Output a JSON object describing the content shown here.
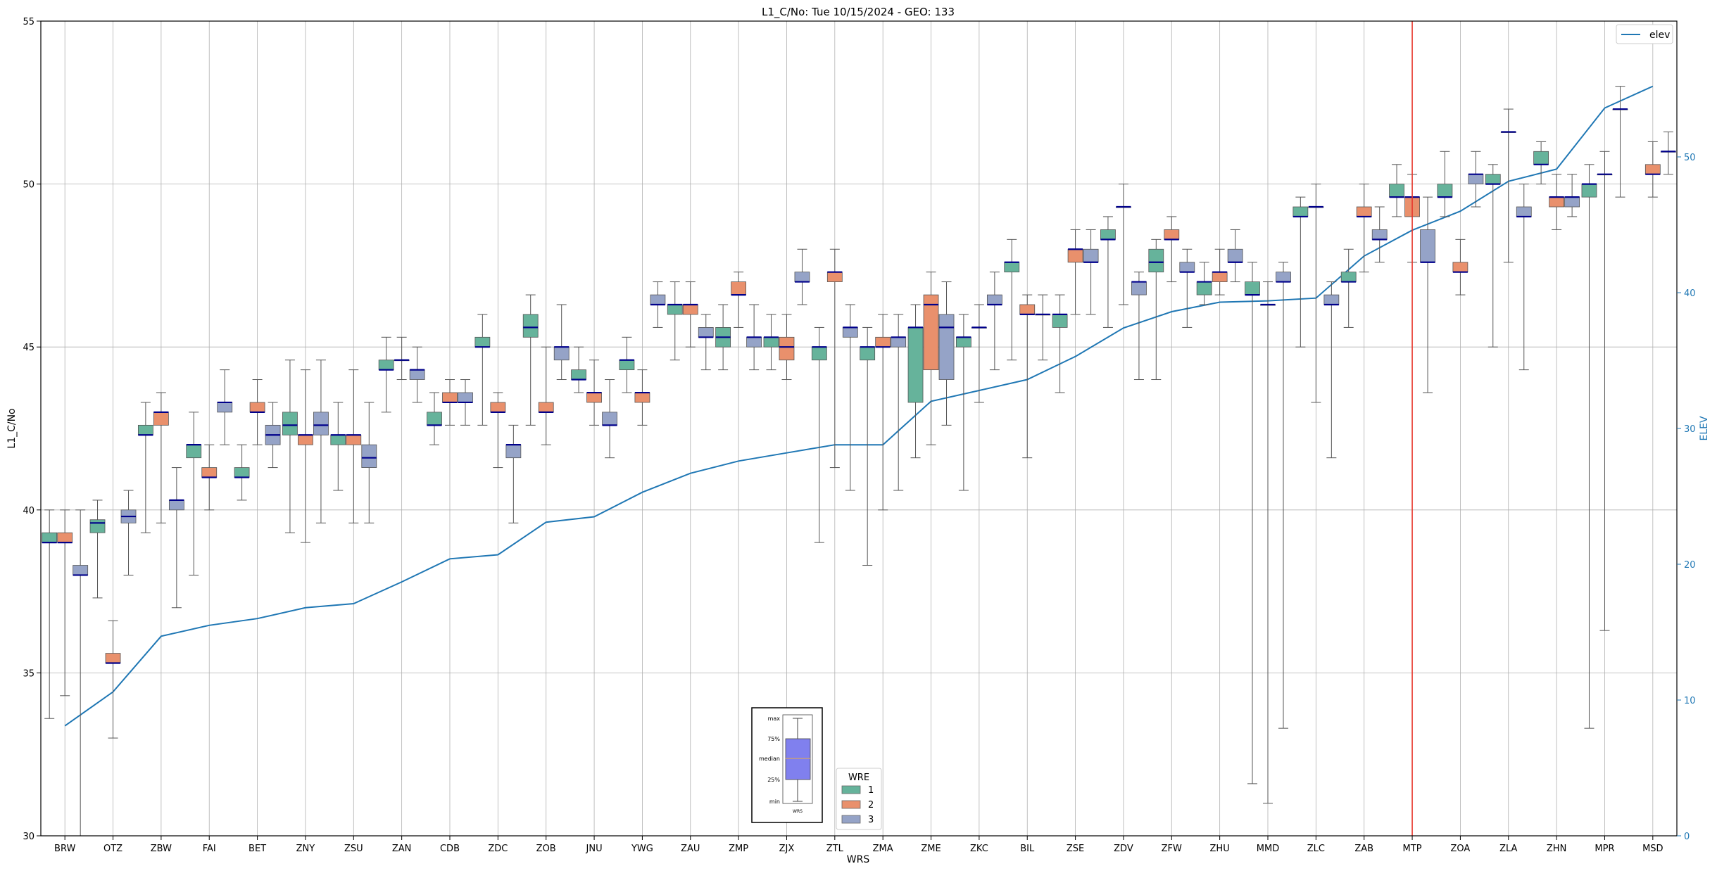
{
  "chart_data": {
    "type": "box",
    "title": "L1_C/No: Tue 10/15/2024 - GEO: 133",
    "xlabel": "WRS",
    "ylabel": "L1_C/No",
    "y2label": "ELEV",
    "ylim": [
      30,
      55
    ],
    "y2lim": [
      0,
      60
    ],
    "yticks": [
      "30",
      "35",
      "40",
      "45",
      "50",
      "55"
    ],
    "y2ticks": [
      "0",
      "10",
      "20",
      "30",
      "40",
      "50"
    ],
    "grid": true,
    "categories": [
      "BRW",
      "OTZ",
      "ZBW",
      "FAI",
      "BET",
      "ZNY",
      "ZSU",
      "ZAN",
      "CDB",
      "ZDC",
      "ZOB",
      "JNU",
      "YWG",
      "ZAU",
      "ZMP",
      "ZJX",
      "ZTL",
      "ZMA",
      "ZME",
      "ZKC",
      "BIL",
      "ZSE",
      "ZDV",
      "ZFW",
      "ZHU",
      "MMD",
      "ZLC",
      "ZAB",
      "MTP",
      "ZOA",
      "ZLA",
      "ZHN",
      "MPR",
      "MSD"
    ],
    "wre_colors": {
      "1": "#66b39b",
      "2": "#e9906c",
      "3": "#95a3c7"
    },
    "median_color": "#00008b",
    "highlight_color": "#e8362b",
    "highlight_category": "MTP",
    "legend": {
      "title": "WRE",
      "entries": [
        "1",
        "2",
        "3"
      ],
      "placement": "lower-center"
    },
    "legend2": {
      "entries": [
        "elev"
      ],
      "placement": "top-right"
    },
    "box_key": {
      "labels": [
        "max",
        "75%",
        "median",
        "25%",
        "min"
      ],
      "xlabel": "WRS"
    },
    "boxes": [
      {
        "cat": "BRW",
        "wre": 1,
        "min": 33.6,
        "q1": 39.0,
        "med": 39.0,
        "q3": 39.3,
        "max": 40.0
      },
      {
        "cat": "BRW",
        "wre": 2,
        "min": 34.3,
        "q1": 39.0,
        "med": 39.0,
        "q3": 39.3,
        "max": 40.0
      },
      {
        "cat": "BRW",
        "wre": 3,
        "min": 30.0,
        "q1": 38.0,
        "med": 38.0,
        "q3": 38.3,
        "max": 40.0
      },
      {
        "cat": "OTZ",
        "wre": 1,
        "min": 37.3,
        "q1": 39.3,
        "med": 39.6,
        "q3": 39.7,
        "max": 40.3
      },
      {
        "cat": "OTZ",
        "wre": 2,
        "min": 33.0,
        "q1": 35.3,
        "med": 35.3,
        "q3": 35.6,
        "max": 36.6
      },
      {
        "cat": "OTZ",
        "wre": 3,
        "min": 38.0,
        "q1": 39.6,
        "med": 39.8,
        "q3": 40.0,
        "max": 40.6
      },
      {
        "cat": "ZBW",
        "wre": 1,
        "min": 39.3,
        "q1": 42.3,
        "med": 42.3,
        "q3": 42.6,
        "max": 43.3
      },
      {
        "cat": "ZBW",
        "wre": 2,
        "min": 39.6,
        "q1": 42.6,
        "med": 43.0,
        "q3": 43.0,
        "max": 43.6
      },
      {
        "cat": "ZBW",
        "wre": 3,
        "min": 37.0,
        "q1": 40.0,
        "med": 40.3,
        "q3": 40.3,
        "max": 41.3
      },
      {
        "cat": "FAI",
        "wre": 1,
        "min": 38.0,
        "q1": 41.6,
        "med": 42.0,
        "q3": 42.0,
        "max": 43.0
      },
      {
        "cat": "FAI",
        "wre": 2,
        "min": 40.0,
        "q1": 41.0,
        "med": 41.0,
        "q3": 41.3,
        "max": 42.0
      },
      {
        "cat": "FAI",
        "wre": 3,
        "min": 42.0,
        "q1": 43.0,
        "med": 43.3,
        "q3": 43.3,
        "max": 44.3
      },
      {
        "cat": "BET",
        "wre": 1,
        "min": 40.3,
        "q1": 41.0,
        "med": 41.0,
        "q3": 41.3,
        "max": 42.0
      },
      {
        "cat": "BET",
        "wre": 2,
        "min": 42.0,
        "q1": 43.0,
        "med": 43.0,
        "q3": 43.3,
        "max": 44.0
      },
      {
        "cat": "BET",
        "wre": 3,
        "min": 41.3,
        "q1": 42.0,
        "med": 42.3,
        "q3": 42.6,
        "max": 43.3
      },
      {
        "cat": "ZNY",
        "wre": 1,
        "min": 39.3,
        "q1": 42.3,
        "med": 42.6,
        "q3": 43.0,
        "max": 44.6
      },
      {
        "cat": "ZNY",
        "wre": 2,
        "min": 39.0,
        "q1": 42.0,
        "med": 42.3,
        "q3": 42.3,
        "max": 44.3
      },
      {
        "cat": "ZNY",
        "wre": 3,
        "min": 39.6,
        "q1": 42.3,
        "med": 42.6,
        "q3": 43.0,
        "max": 44.6
      },
      {
        "cat": "ZSU",
        "wre": 1,
        "min": 40.6,
        "q1": 42.0,
        "med": 42.3,
        "q3": 42.3,
        "max": 43.3
      },
      {
        "cat": "ZSU",
        "wre": 2,
        "min": 39.6,
        "q1": 42.0,
        "med": 42.3,
        "q3": 42.3,
        "max": 44.3
      },
      {
        "cat": "ZSU",
        "wre": 3,
        "min": 39.6,
        "q1": 41.3,
        "med": 41.6,
        "q3": 42.0,
        "max": 43.3
      },
      {
        "cat": "ZAN",
        "wre": 1,
        "min": 43.0,
        "q1": 44.3,
        "med": 44.3,
        "q3": 44.6,
        "max": 45.3
      },
      {
        "cat": "ZAN",
        "wre": 2,
        "min": 44.0,
        "q1": 44.6,
        "med": 44.6,
        "q3": 44.6,
        "max": 45.3
      },
      {
        "cat": "ZAN",
        "wre": 3,
        "min": 43.3,
        "q1": 44.0,
        "med": 44.3,
        "q3": 44.3,
        "max": 45.0
      },
      {
        "cat": "CDB",
        "wre": 1,
        "min": 42.0,
        "q1": 42.6,
        "med": 42.6,
        "q3": 43.0,
        "max": 43.6
      },
      {
        "cat": "CDB",
        "wre": 2,
        "min": 42.6,
        "q1": 43.3,
        "med": 43.3,
        "q3": 43.6,
        "max": 44.0
      },
      {
        "cat": "CDB",
        "wre": 3,
        "min": 42.6,
        "q1": 43.3,
        "med": 43.3,
        "q3": 43.6,
        "max": 44.0
      },
      {
        "cat": "ZDC",
        "wre": 1,
        "min": 42.6,
        "q1": 45.0,
        "med": 45.0,
        "q3": 45.3,
        "max": 46.0
      },
      {
        "cat": "ZDC",
        "wre": 2,
        "min": 41.3,
        "q1": 43.0,
        "med": 43.0,
        "q3": 43.3,
        "max": 43.6
      },
      {
        "cat": "ZDC",
        "wre": 3,
        "min": 39.6,
        "q1": 41.6,
        "med": 42.0,
        "q3": 42.0,
        "max": 42.6
      },
      {
        "cat": "ZOB",
        "wre": 1,
        "min": 42.6,
        "q1": 45.3,
        "med": 45.6,
        "q3": 46.0,
        "max": 46.6
      },
      {
        "cat": "ZOB",
        "wre": 2,
        "min": 42.0,
        "q1": 43.0,
        "med": 43.0,
        "q3": 43.3,
        "max": 45.0
      },
      {
        "cat": "ZOB",
        "wre": 3,
        "min": 44.0,
        "q1": 44.6,
        "med": 45.0,
        "q3": 45.0,
        "max": 46.3
      },
      {
        "cat": "JNU",
        "wre": 1,
        "min": 43.6,
        "q1": 44.0,
        "med": 44.0,
        "q3": 44.3,
        "max": 45.0
      },
      {
        "cat": "JNU",
        "wre": 2,
        "min": 42.6,
        "q1": 43.3,
        "med": 43.6,
        "q3": 43.6,
        "max": 44.6
      },
      {
        "cat": "JNU",
        "wre": 3,
        "min": 41.6,
        "q1": 42.6,
        "med": 42.6,
        "q3": 43.0,
        "max": 44.0
      },
      {
        "cat": "YWG",
        "wre": 1,
        "min": 43.6,
        "q1": 44.3,
        "med": 44.6,
        "q3": 44.6,
        "max": 45.3
      },
      {
        "cat": "YWG",
        "wre": 2,
        "min": 42.6,
        "q1": 43.3,
        "med": 43.6,
        "q3": 43.6,
        "max": 44.3
      },
      {
        "cat": "YWG",
        "wre": 3,
        "min": 45.6,
        "q1": 46.3,
        "med": 46.3,
        "q3": 46.6,
        "max": 47.0
      },
      {
        "cat": "ZAU",
        "wre": 1,
        "min": 44.6,
        "q1": 46.0,
        "med": 46.3,
        "q3": 46.3,
        "max": 47.0
      },
      {
        "cat": "ZAU",
        "wre": 2,
        "min": 45.0,
        "q1": 46.0,
        "med": 46.3,
        "q3": 46.3,
        "max": 47.0
      },
      {
        "cat": "ZAU",
        "wre": 3,
        "min": 44.3,
        "q1": 45.3,
        "med": 45.3,
        "q3": 45.6,
        "max": 46.0
      },
      {
        "cat": "ZMP",
        "wre": 1,
        "min": 44.3,
        "q1": 45.0,
        "med": 45.3,
        "q3": 45.6,
        "max": 46.3
      },
      {
        "cat": "ZMP",
        "wre": 2,
        "min": 45.6,
        "q1": 46.6,
        "med": 46.6,
        "q3": 47.0,
        "max": 47.3
      },
      {
        "cat": "ZMP",
        "wre": 3,
        "min": 44.3,
        "q1": 45.0,
        "med": 45.3,
        "q3": 45.3,
        "max": 46.3
      },
      {
        "cat": "ZJX",
        "wre": 1,
        "min": 44.3,
        "q1": 45.0,
        "med": 45.3,
        "q3": 45.3,
        "max": 46.0
      },
      {
        "cat": "ZJX",
        "wre": 2,
        "min": 44.0,
        "q1": 44.6,
        "med": 45.0,
        "q3": 45.3,
        "max": 46.0
      },
      {
        "cat": "ZJX",
        "wre": 3,
        "min": 46.3,
        "q1": 47.0,
        "med": 47.0,
        "q3": 47.3,
        "max": 48.0
      },
      {
        "cat": "ZTL",
        "wre": 1,
        "min": 39.0,
        "q1": 44.6,
        "med": 45.0,
        "q3": 45.0,
        "max": 45.6
      },
      {
        "cat": "ZTL",
        "wre": 2,
        "min": 41.3,
        "q1": 47.0,
        "med": 47.3,
        "q3": 47.3,
        "max": 48.0
      },
      {
        "cat": "ZTL",
        "wre": 3,
        "min": 40.6,
        "q1": 45.3,
        "med": 45.6,
        "q3": 45.6,
        "max": 46.3
      },
      {
        "cat": "ZMA",
        "wre": 1,
        "min": 38.3,
        "q1": 44.6,
        "med": 45.0,
        "q3": 45.0,
        "max": 45.6
      },
      {
        "cat": "ZMA",
        "wre": 2,
        "min": 40.0,
        "q1": 45.0,
        "med": 45.0,
        "q3": 45.3,
        "max": 46.0
      },
      {
        "cat": "ZMA",
        "wre": 3,
        "min": 40.6,
        "q1": 45.0,
        "med": 45.3,
        "q3": 45.3,
        "max": 46.0
      },
      {
        "cat": "ZME",
        "wre": 1,
        "min": 41.6,
        "q1": 43.3,
        "med": 45.6,
        "q3": 45.6,
        "max": 46.3
      },
      {
        "cat": "ZME",
        "wre": 2,
        "min": 42.0,
        "q1": 44.3,
        "med": 46.3,
        "q3": 46.6,
        "max": 47.3
      },
      {
        "cat": "ZME",
        "wre": 3,
        "min": 42.6,
        "q1": 44.0,
        "med": 45.6,
        "q3": 46.0,
        "max": 47.0
      },
      {
        "cat": "ZKC",
        "wre": 1,
        "min": 40.6,
        "q1": 45.0,
        "med": 45.3,
        "q3": 45.3,
        "max": 46.0
      },
      {
        "cat": "ZKC",
        "wre": 2,
        "min": 43.3,
        "q1": 45.6,
        "med": 45.6,
        "q3": 45.6,
        "max": 46.3
      },
      {
        "cat": "ZKC",
        "wre": 3,
        "min": 44.3,
        "q1": 46.3,
        "med": 46.3,
        "q3": 46.6,
        "max": 47.3
      },
      {
        "cat": "BIL",
        "wre": 1,
        "min": 44.6,
        "q1": 47.3,
        "med": 47.6,
        "q3": 47.6,
        "max": 48.3
      },
      {
        "cat": "BIL",
        "wre": 2,
        "min": 41.6,
        "q1": 46.0,
        "med": 46.0,
        "q3": 46.3,
        "max": 46.6
      },
      {
        "cat": "BIL",
        "wre": 3,
        "min": 44.6,
        "q1": 46.0,
        "med": 46.0,
        "q3": 46.0,
        "max": 46.6
      },
      {
        "cat": "ZSE",
        "wre": 1,
        "min": 43.6,
        "q1": 45.6,
        "med": 46.0,
        "q3": 46.0,
        "max": 46.6
      },
      {
        "cat": "ZSE",
        "wre": 2,
        "min": 46.0,
        "q1": 47.6,
        "med": 48.0,
        "q3": 48.0,
        "max": 48.6
      },
      {
        "cat": "ZSE",
        "wre": 3,
        "min": 46.0,
        "q1": 47.6,
        "med": 47.6,
        "q3": 48.0,
        "max": 48.6
      },
      {
        "cat": "ZDV",
        "wre": 1,
        "min": 45.6,
        "q1": 48.3,
        "med": 48.3,
        "q3": 48.6,
        "max": 49.0
      },
      {
        "cat": "ZDV",
        "wre": 2,
        "min": 46.3,
        "q1": 49.3,
        "med": 49.3,
        "q3": 49.3,
        "max": 50.0
      },
      {
        "cat": "ZDV",
        "wre": 3,
        "min": 44.0,
        "q1": 46.6,
        "med": 47.0,
        "q3": 47.0,
        "max": 47.3
      },
      {
        "cat": "ZFW",
        "wre": 1,
        "min": 44.0,
        "q1": 47.3,
        "med": 47.6,
        "q3": 48.0,
        "max": 48.3
      },
      {
        "cat": "ZFW",
        "wre": 2,
        "min": 47.0,
        "q1": 48.3,
        "med": 48.3,
        "q3": 48.6,
        "max": 49.0
      },
      {
        "cat": "ZFW",
        "wre": 3,
        "min": 45.6,
        "q1": 47.3,
        "med": 47.3,
        "q3": 47.6,
        "max": 48.0
      },
      {
        "cat": "ZHU",
        "wre": 1,
        "min": 46.3,
        "q1": 46.6,
        "med": 47.0,
        "q3": 47.0,
        "max": 47.6
      },
      {
        "cat": "ZHU",
        "wre": 2,
        "min": 46.6,
        "q1": 47.0,
        "med": 47.3,
        "q3": 47.3,
        "max": 48.0
      },
      {
        "cat": "ZHU",
        "wre": 3,
        "min": 47.0,
        "q1": 47.6,
        "med": 47.6,
        "q3": 48.0,
        "max": 48.6
      },
      {
        "cat": "MMD",
        "wre": 1,
        "min": 31.6,
        "q1": 46.6,
        "med": 46.6,
        "q3": 47.0,
        "max": 47.6
      },
      {
        "cat": "MMD",
        "wre": 2,
        "min": 31.0,
        "q1": 46.3,
        "med": 46.3,
        "q3": 46.3,
        "max": 47.0
      },
      {
        "cat": "MMD",
        "wre": 3,
        "min": 33.3,
        "q1": 47.0,
        "med": 47.0,
        "q3": 47.3,
        "max": 47.6
      },
      {
        "cat": "ZLC",
        "wre": 1,
        "min": 45.0,
        "q1": 49.0,
        "med": 49.0,
        "q3": 49.3,
        "max": 49.6
      },
      {
        "cat": "ZLC",
        "wre": 2,
        "min": 43.3,
        "q1": 49.3,
        "med": 49.3,
        "q3": 49.3,
        "max": 50.0
      },
      {
        "cat": "ZLC",
        "wre": 3,
        "min": 41.6,
        "q1": 46.3,
        "med": 46.3,
        "q3": 46.6,
        "max": 47.0
      },
      {
        "cat": "ZAB",
        "wre": 1,
        "min": 45.6,
        "q1": 47.0,
        "med": 47.0,
        "q3": 47.3,
        "max": 48.0
      },
      {
        "cat": "ZAB",
        "wre": 2,
        "min": 47.3,
        "q1": 49.0,
        "med": 49.0,
        "q3": 49.3,
        "max": 50.0
      },
      {
        "cat": "ZAB",
        "wre": 3,
        "min": 47.6,
        "q1": 48.3,
        "med": 48.3,
        "q3": 48.6,
        "max": 49.3
      },
      {
        "cat": "MTP",
        "wre": 1,
        "min": 49.0,
        "q1": 49.6,
        "med": 49.6,
        "q3": 50.0,
        "max": 50.6
      },
      {
        "cat": "MTP",
        "wre": 2,
        "min": 47.6,
        "q1": 49.0,
        "med": 49.6,
        "q3": 49.6,
        "max": 50.3
      },
      {
        "cat": "MTP",
        "wre": 3,
        "min": 43.6,
        "q1": 47.6,
        "med": 47.6,
        "q3": 48.6,
        "max": 49.6
      },
      {
        "cat": "ZOA",
        "wre": 1,
        "min": 49.0,
        "q1": 49.6,
        "med": 49.6,
        "q3": 50.0,
        "max": 51.0
      },
      {
        "cat": "ZOA",
        "wre": 2,
        "min": 46.6,
        "q1": 47.3,
        "med": 47.3,
        "q3": 47.6,
        "max": 48.3
      },
      {
        "cat": "ZOA",
        "wre": 3,
        "min": 49.3,
        "q1": 50.0,
        "med": 50.3,
        "q3": 50.3,
        "max": 51.0
      },
      {
        "cat": "ZLA",
        "wre": 1,
        "min": 45.0,
        "q1": 50.0,
        "med": 50.0,
        "q3": 50.3,
        "max": 50.6
      },
      {
        "cat": "ZLA",
        "wre": 2,
        "min": 47.6,
        "q1": 51.6,
        "med": 51.6,
        "q3": 51.6,
        "max": 52.3
      },
      {
        "cat": "ZLA",
        "wre": 3,
        "min": 44.3,
        "q1": 49.0,
        "med": 49.0,
        "q3": 49.3,
        "max": 50.0
      },
      {
        "cat": "ZHN",
        "wre": 1,
        "min": 50.0,
        "q1": 50.6,
        "med": 50.6,
        "q3": 51.0,
        "max": 51.3
      },
      {
        "cat": "ZHN",
        "wre": 2,
        "min": 48.6,
        "q1": 49.3,
        "med": 49.6,
        "q3": 49.6,
        "max": 50.3
      },
      {
        "cat": "ZHN",
        "wre": 3,
        "min": 49.0,
        "q1": 49.3,
        "med": 49.6,
        "q3": 49.6,
        "max": 50.3
      },
      {
        "cat": "MPR",
        "wre": 1,
        "min": 33.3,
        "q1": 49.6,
        "med": 50.0,
        "q3": 50.0,
        "max": 50.6
      },
      {
        "cat": "MPR",
        "wre": 2,
        "min": 36.3,
        "q1": 50.3,
        "med": 50.3,
        "q3": 50.3,
        "max": 51.0
      },
      {
        "cat": "MPR",
        "wre": 3,
        "min": 49.6,
        "q1": 52.3,
        "med": 52.3,
        "q3": 52.3,
        "max": 53.0
      },
      {
        "cat": "MSD",
        "wre": 2,
        "min": 49.6,
        "q1": 50.3,
        "med": 50.3,
        "q3": 50.6,
        "max": 51.3
      },
      {
        "cat": "MSD",
        "wre": 3,
        "min": 50.3,
        "q1": 51.0,
        "med": 51.0,
        "q3": 51.0,
        "max": 51.6
      }
    ],
    "elev": {
      "name": "elev",
      "color": "#1f77b4",
      "values": [
        8.1,
        10.6,
        14.7,
        15.5,
        16.0,
        16.8,
        17.1,
        18.7,
        20.4,
        20.7,
        23.1,
        23.5,
        25.3,
        26.7,
        27.6,
        28.2,
        28.8,
        28.8,
        32.0,
        32.8,
        33.6,
        35.3,
        37.4,
        38.6,
        39.3,
        39.4,
        39.6,
        42.7,
        44.6,
        46.0,
        48.2,
        49.1,
        53.6,
        55.2
      ]
    }
  }
}
